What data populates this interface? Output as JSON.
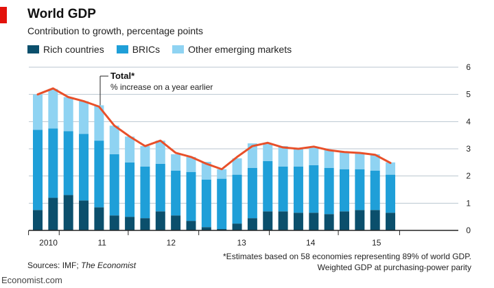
{
  "header": {
    "title": "World GDP",
    "subtitle": "Contribution to growth, percentage points"
  },
  "legend": [
    {
      "label": "Rich countries",
      "color": "#0b4f6c"
    },
    {
      "label": "BRICs",
      "color": "#1f9fd8"
    },
    {
      "label": "Other emerging markets",
      "color": "#8fd3f2"
    }
  ],
  "annotation": {
    "title": "Total*",
    "subtitle": "% increase on a year earlier"
  },
  "footer": {
    "sources_prefix": "Sources: IMF; ",
    "sources_italic": "The Economist",
    "note_line1": "*Estimates based on 58 economies representing 89% of world GDP.",
    "note_line2": "Weighted GDP at purchasing-power parity",
    "brand": "Economist.com"
  },
  "colors": {
    "rich": "#0b4f6c",
    "brics": "#1f9fd8",
    "other": "#8fd3f2",
    "total_line": "#e8502a",
    "grid": "#b8c6cf",
    "accent_red": "#e3120b"
  },
  "chart_data": {
    "type": "bar",
    "stacked": true,
    "title": "World GDP",
    "subtitle": "Contribution to growth, percentage points",
    "ylim": [
      0,
      6
    ],
    "yticks": [
      0,
      1,
      2,
      3,
      4,
      5,
      6
    ],
    "y_axis_side": "right",
    "grid": true,
    "legend_position": "top-left",
    "x_tick_labels": [
      "2010",
      "11",
      "12",
      "13",
      "14",
      "15"
    ],
    "x_period": "monthly, Nov 2009 to Sep 2015 (approx.)",
    "series": [
      {
        "name": "Rich countries",
        "values": [
          0.75,
          1.2,
          1.3,
          1.1,
          0.85,
          0.55,
          0.5,
          0.45,
          0.7,
          0.55,
          0.35,
          0.12,
          0.05,
          0.25,
          0.45,
          0.7,
          0.7,
          0.65,
          0.65,
          0.6,
          0.7,
          0.75,
          0.75,
          0.65
        ]
      },
      {
        "name": "BRICs",
        "values": [
          2.95,
          2.55,
          2.35,
          2.45,
          2.45,
          2.25,
          2.0,
          1.9,
          1.75,
          1.65,
          1.8,
          1.75,
          1.85,
          1.8,
          1.85,
          1.85,
          1.65,
          1.7,
          1.75,
          1.7,
          1.55,
          1.5,
          1.45,
          1.4
        ]
      },
      {
        "name": "Other emerging markets",
        "values": [
          1.3,
          1.45,
          1.25,
          1.2,
          1.3,
          1.05,
          0.95,
          0.75,
          0.85,
          0.6,
          0.55,
          0.65,
          0.35,
          0.6,
          0.9,
          0.65,
          0.75,
          0.65,
          0.65,
          0.65,
          0.65,
          0.6,
          0.6,
          0.45
        ]
      }
    ],
    "total": {
      "name": "Total*",
      "values": [
        5.0,
        5.22,
        4.9,
        4.75,
        4.55,
        3.85,
        3.45,
        3.1,
        3.3,
        2.85,
        2.7,
        2.45,
        2.25,
        2.7,
        3.1,
        3.22,
        3.05,
        3.0,
        3.08,
        2.95,
        2.88,
        2.85,
        2.78,
        2.48
      ]
    }
  }
}
